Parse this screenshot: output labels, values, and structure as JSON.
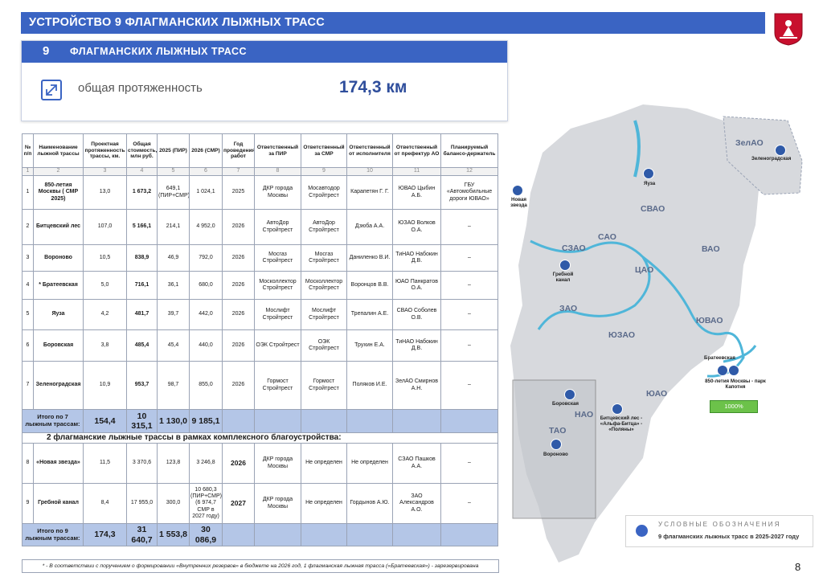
{
  "page": {
    "title": "УСТРОЙСТВО 9 ФЛАГМАНСКИХ ЛЫЖНЫХ ТРАСС",
    "number": "8"
  },
  "card": {
    "num": "9",
    "title": "ФЛАГМАНСКИХ ЛЫЖНЫХ ТРАСС",
    "label": "общая протяженность",
    "value": "174,3 км"
  },
  "table": {
    "headers": [
      "№ п/п",
      "Наименование лыжной трассы",
      "Проектная протяженность трассы, км.",
      "Общая стоимость, млн руб.",
      "2025 (ПИР)",
      "2026 (СМР)",
      "Год проведения работ",
      "Ответственный за ПИР",
      "Ответственный за СМР",
      "Ответственный от исполнителя",
      "Ответственный от префектур АО",
      "Планируемый балансо-держатель"
    ],
    "index": [
      "1",
      "2",
      "3",
      "4",
      "5",
      "6",
      "7",
      "8",
      "9",
      "10",
      "11",
      "12"
    ],
    "rows": [
      {
        "n": "1",
        "name": "850-летия Москвы ( СМР 2025)",
        "len": "13,0",
        "cost": "1 673,2",
        "pir": "649,1 (ПИР+СМР)",
        "smr": "1 024,1",
        "year": "2025",
        "rpir": "ДКР города Москвы",
        "rsmr": "Мосавтодор Стройтрест",
        "exec": "Карапетян Г. Г.",
        "pref": "ЮВАО Цыбин А.Б.",
        "hold": "ГБУ «Автомобильные дороги ЮВАО»"
      },
      {
        "n": "2",
        "name": "Битцевский лес",
        "len": "107,0",
        "cost": "5 166,1",
        "pir": "214,1",
        "smr": "4 952,0",
        "year": "2026",
        "rpir": "АвтоДор Стройтрест",
        "rsmr": "АвтоДор Стройтрест",
        "exec": "Дзюба А.А.",
        "pref": "ЮЗАО Волков О.А.",
        "hold": "–"
      },
      {
        "n": "3",
        "name": "Вороново",
        "len": "10,5",
        "cost": "838,9",
        "pir": "46,9",
        "smr": "792,0",
        "year": "2026",
        "rpir": "Мосгаз Стройтрест",
        "rsmr": "Мосгаз Стройтрест",
        "exec": "Даниленко В.И.",
        "pref": "ТиНАО Набокин Д.В.",
        "hold": "–"
      },
      {
        "n": "4",
        "name": "* Братеевская",
        "len": "5,0",
        "cost": "716,1",
        "pir": "36,1",
        "smr": "680,0",
        "year": "2026",
        "rpir": "Москоллектор Стройтрест",
        "rsmr": "Москоллектор Стройтрест",
        "exec": "Воронцов В.В.",
        "pref": "ЮАО Панкратов О.А.",
        "hold": "–"
      },
      {
        "n": "5",
        "name": "Яуза",
        "len": "4,2",
        "cost": "481,7",
        "pir": "39,7",
        "smr": "442,0",
        "year": "2026",
        "rpir": "Мослифт Стройтрест",
        "rsmr": "Мослифт Стройтрест",
        "exec": "Трепалин А.Е.",
        "pref": "СВАО Соболев О.В.",
        "hold": "–"
      },
      {
        "n": "6",
        "name": "Боровская",
        "len": "3,8",
        "cost": "485,4",
        "pir": "45,4",
        "smr": "440,0",
        "year": "2026",
        "rpir": "ОЭК Стройтрест",
        "rsmr": "ОЭК Стройтрест",
        "exec": "Трухин Е.А.",
        "pref": "ТиНАО Набокин Д.В.",
        "hold": "–"
      },
      {
        "n": "7",
        "name": "Зеленоградская",
        "len": "10,9",
        "cost": "953,7",
        "pir": "98,7",
        "smr": "855,0",
        "year": "2026",
        "rpir": "Гормост Стройтрест",
        "rsmr": "Гормост Стройтрест",
        "exec": "Поляков И.Е.",
        "pref": "ЗелАО Смирнов А.Н.",
        "hold": "–"
      }
    ],
    "total7": {
      "label": "Итого по 7 лыжным трассам:",
      "len": "154,4",
      "cost": "10 315,1",
      "pir": "1 130,0",
      "smr": "9 185,1"
    },
    "subheader": "2 флагманские лыжные трассы в рамках комплексного благоустройства:",
    "rows2": [
      {
        "n": "8",
        "name": "«Новая звезда»",
        "len": "11,5",
        "cost": "3 370,6",
        "pir": "123,8",
        "smr": "3 246,8",
        "year": "2026",
        "rpir": "ДКР города Москвы",
        "rsmr": "Не определен",
        "exec": "Не определен",
        "pref": "СЗАО Пашков А.А.",
        "hold": "–"
      },
      {
        "n": "9",
        "name": "Гребной канал",
        "len": "8,4",
        "cost": "17 955,0",
        "pir": "300,0",
        "smr": "10 680,3 (ПИР+СМР) (6 974,7 СМР в 2027 году)",
        "year": "2027",
        "rpir": "ДКР города Москвы",
        "rsmr": "Не определен",
        "exec": "Гордынов А.Ю.",
        "pref": "ЗАО Александров А.О.",
        "hold": "–"
      }
    ],
    "total9": {
      "label": "Итого по 9 лыжным трассам:",
      "len": "174,3",
      "cost": "31 640,7",
      "pir": "1 553,8",
      "smr": "30 086,9"
    }
  },
  "footnote": "* - В соответствии с поручением о формировании «Внутренних резервов» в бюджете на 2026 год, 1 флагманская лыжная трасса («Братеевская») - зарезервирована",
  "map": {
    "districts": [
      "ЗелАО",
      "САО",
      "СВАО",
      "СЗАО",
      "ЦАО",
      "ВАО",
      "ЗАО",
      "ЮЗАО",
      "ЮВАО",
      "ЮАО",
      "НАО",
      "ТАО"
    ],
    "tracks": [
      "Зеленоградская",
      "Яуза",
      "Новая звезда",
      "Гребной канал",
      "Братеевская",
      "850-летия Москвы - парк Капотня",
      "Боровская",
      "Битцевский лес - «Альфа-Битца» - «Поляны»",
      "Вороново"
    ],
    "badge": "1000%"
  },
  "legend": {
    "title": "УСЛОВНЫЕ ОБОЗНАЧЕНИЯ",
    "item": "9 флагманских лыжных трасс в 2025-2027 году"
  },
  "colors": {
    "accent": "#3a64c3",
    "total_row": "#b4c6e7",
    "badge": "#6cc24a"
  }
}
